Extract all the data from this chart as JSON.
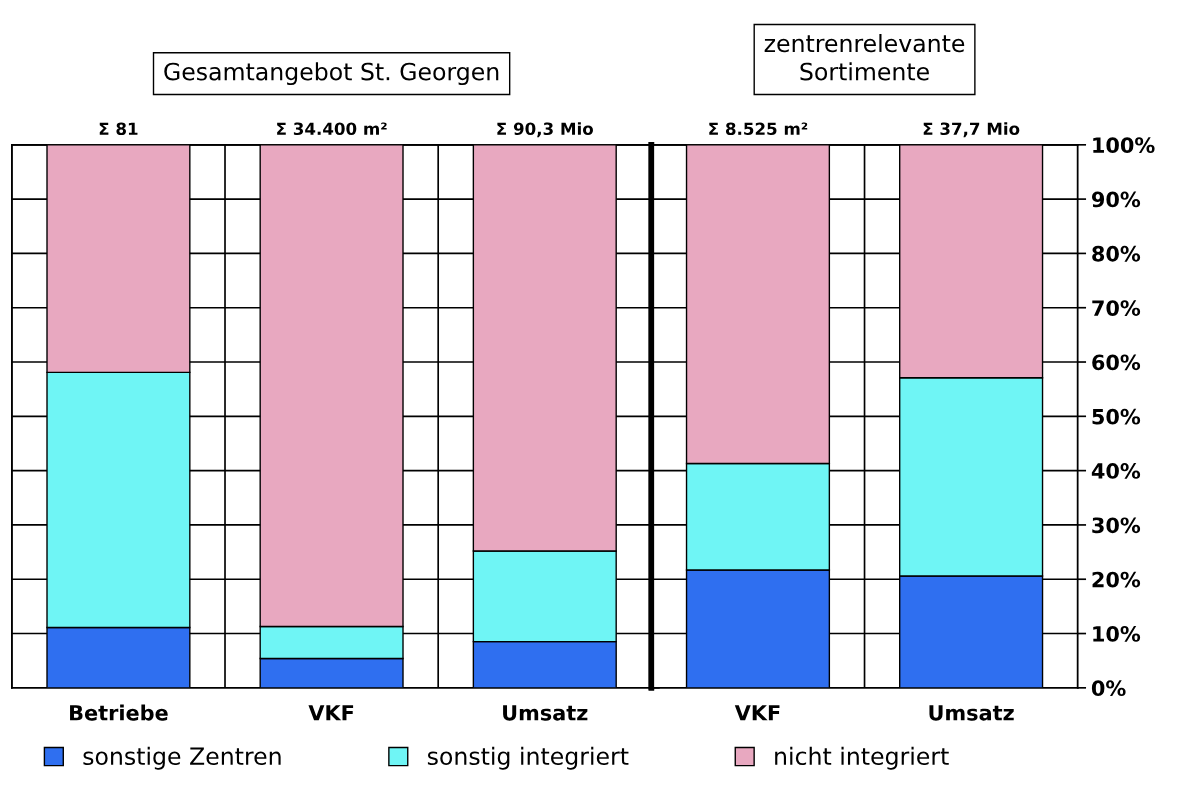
{
  "chart_data": [
    {
      "type": "bar",
      "title": "Gesamtangebot St. Georgen",
      "stacked": true,
      "categories": [
        "Betriebe",
        "VKF",
        "Umsatz"
      ],
      "series": [
        {
          "name": "sonstige Zentren",
          "color": "#2f6ff0",
          "values": [
            11.1,
            5.4,
            8.5
          ]
        },
        {
          "name": "sonstig integriert",
          "color": "#6ff5f5",
          "values": [
            47.0,
            5.9,
            16.7
          ]
        },
        {
          "name": "nicht integriert",
          "color": "#e8a8c0",
          "values": [
            41.9,
            88.7,
            74.8
          ]
        }
      ],
      "totals": [
        "Σ 81",
        "Σ 34.400 m²",
        "Σ 90,3 Mio"
      ],
      "ylim": [
        0,
        100
      ],
      "yticks": [
        0,
        10,
        20,
        30,
        40,
        50,
        60,
        70,
        80,
        90,
        100
      ],
      "tick_labels": "x",
      "grid": true,
      "legend": "bottom"
    },
    {
      "type": "bar",
      "title": "zentrenrelevante\nSortimente",
      "stacked": true,
      "categories": [
        "VKF",
        "Umsatz"
      ],
      "series": [
        {
          "color": "#2f6ff0",
          "values": [
            21.7,
            20.6
          ]
        },
        {
          "color": "#6ff5f5",
          "values": [
            19.6,
            36.5
          ]
        },
        {
          "color": "#e8a8c0",
          "values": [
            58.7,
            42.9
          ]
        }
      ],
      "totals": [
        "Σ 8.525 m²",
        "Σ 37,7 Mio"
      ],
      "ylim": [
        0,
        100
      ],
      "yticks": [
        {
          "value": 0,
          "label": "0%"
        },
        {
          "value": 10,
          "label": "10%"
        },
        {
          "value": 20,
          "label": "20%"
        },
        {
          "value": 30,
          "label": "30%"
        },
        {
          "value": 40,
          "label": "40%"
        },
        {
          "value": 50,
          "label": "50%"
        },
        {
          "value": 60,
          "label": "60%"
        },
        {
          "value": 70,
          "label": "70%"
        },
        {
          "value": 80,
          "label": "80%"
        },
        {
          "value": 90,
          "label": "90%"
        },
        {
          "value": 100,
          "label": "100%"
        }
      ],
      "grid": true
    }
  ]
}
